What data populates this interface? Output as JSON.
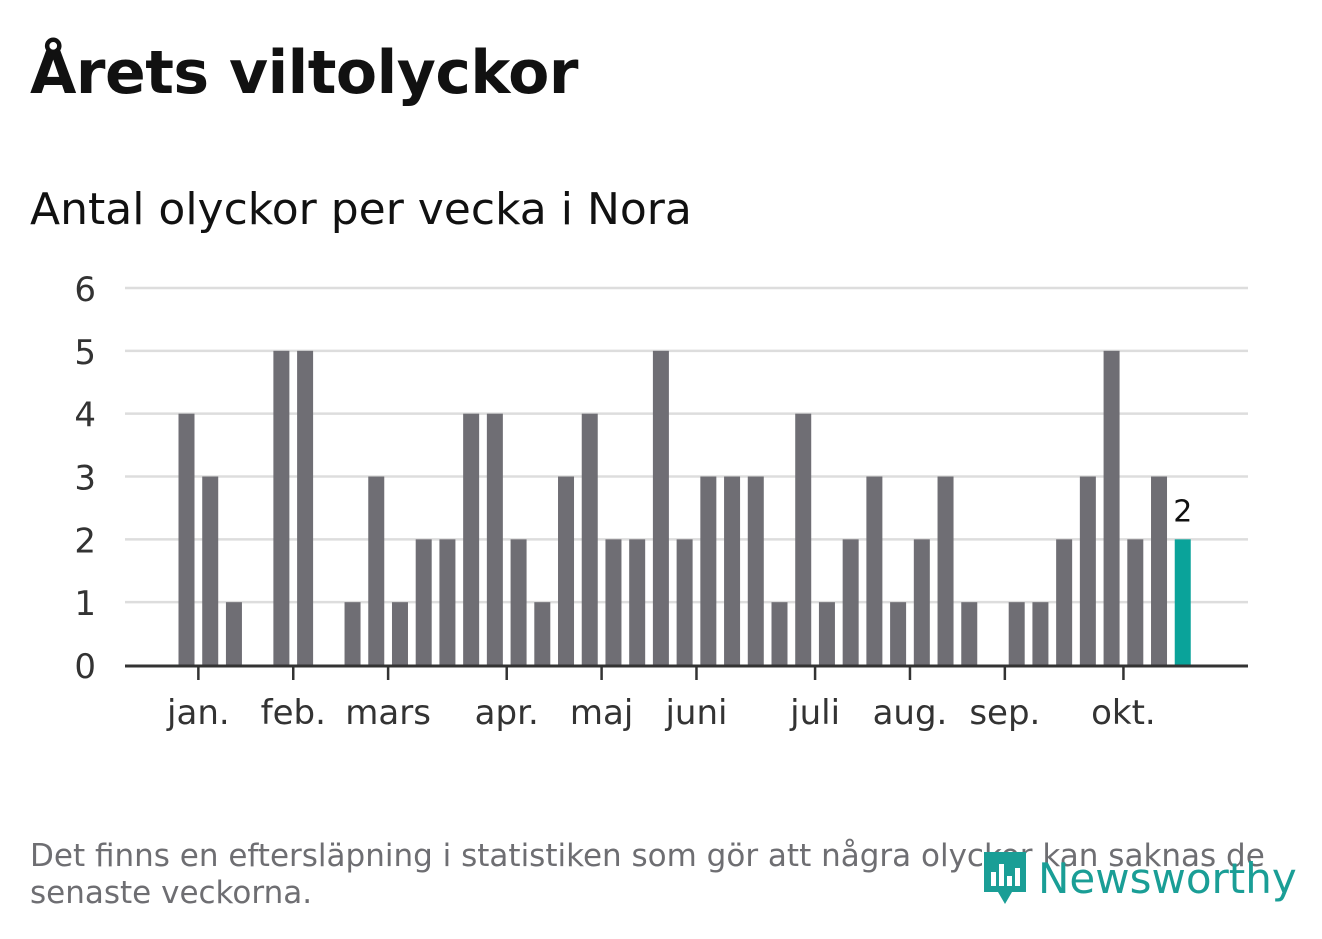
{
  "title": "Årets viltolyckor",
  "subtitle": "Antal olyckor per vecka i Nora",
  "footnote": "Det finns en eftersläpning i statistiken som gör att några olyckor kan saknas de senaste veckorna.",
  "brand": "Newsworthy",
  "colors": {
    "bar": "#6f6e74",
    "highlight": "#0aa39a",
    "grid": "#dddddd",
    "axis": "#333333",
    "brand": "#1a9e96"
  },
  "chart_data": {
    "type": "bar",
    "title": "Antal olyckor per vecka i Nora",
    "xlabel": "",
    "ylabel": "",
    "ylim": [
      0,
      6
    ],
    "yticks": [
      0,
      1,
      2,
      3,
      4,
      5,
      6
    ],
    "grid": true,
    "weeks": [
      1,
      2,
      3,
      4,
      5,
      6,
      7,
      8,
      9,
      10,
      11,
      12,
      13,
      14,
      15,
      16,
      17,
      18,
      19,
      20,
      21,
      22,
      23,
      24,
      25,
      26,
      27,
      28,
      29,
      30,
      31,
      32,
      33,
      34,
      35,
      36,
      37,
      38,
      39,
      40,
      41,
      42,
      43
    ],
    "values": [
      4,
      3,
      1,
      0,
      5,
      5,
      0,
      1,
      3,
      1,
      2,
      2,
      4,
      4,
      2,
      1,
      3,
      4,
      2,
      2,
      5,
      2,
      3,
      3,
      3,
      1,
      4,
      1,
      2,
      3,
      1,
      2,
      3,
      1,
      0,
      1,
      1,
      2,
      3,
      5,
      2,
      3,
      2
    ],
    "highlight_index": 42,
    "highlight_label": "2",
    "month_labels": [
      {
        "label": "jan.",
        "week": 1.5
      },
      {
        "label": "feb.",
        "week": 5.5
      },
      {
        "label": "mars",
        "week": 9.5
      },
      {
        "label": "apr.",
        "week": 14.5
      },
      {
        "label": "maj",
        "week": 18.5
      },
      {
        "label": "juni",
        "week": 22.5
      },
      {
        "label": "juli",
        "week": 27.5
      },
      {
        "label": "aug.",
        "week": 31.5
      },
      {
        "label": "sep.",
        "week": 35.5
      },
      {
        "label": "okt.",
        "week": 40.5
      }
    ]
  }
}
